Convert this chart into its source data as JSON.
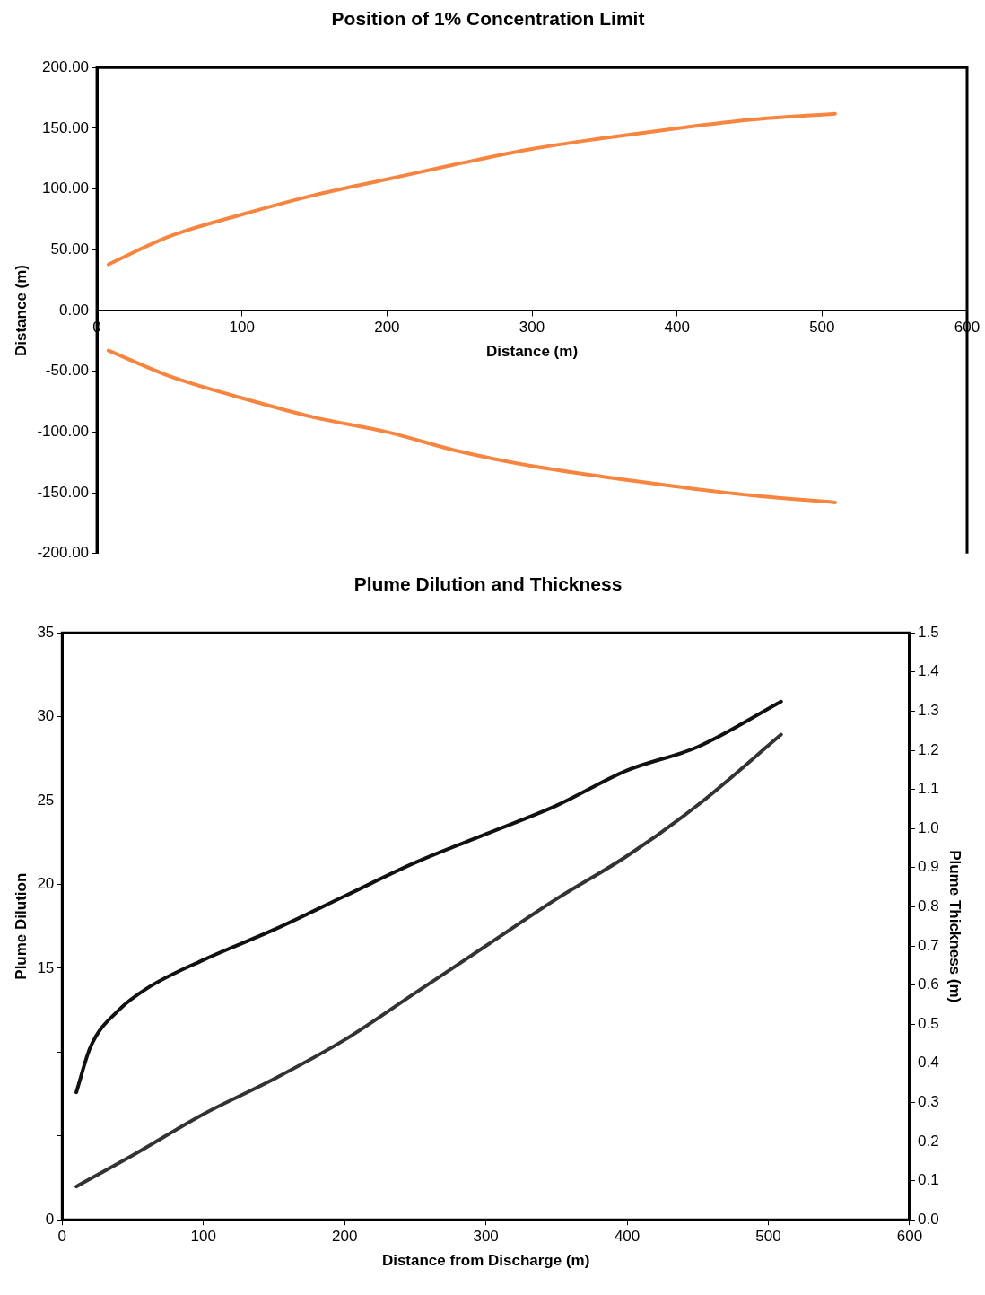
{
  "chart_data": [
    {
      "type": "line",
      "title": "Position of 1% Concentration Limit",
      "xlabel": "Distance (m)",
      "ylabel": "Distance (m)",
      "grid": false,
      "legend": false,
      "marker": "none",
      "line_style": "solid",
      "xlim": [
        0,
        600
      ],
      "xticks": [
        0,
        100,
        200,
        300,
        400,
        500,
        600
      ],
      "ylim": [
        -200,
        200
      ],
      "yticks": [
        {
          "value": -200,
          "label": "-200.00"
        },
        {
          "value": -150,
          "label": "-150.00"
        },
        {
          "value": -100,
          "label": "-100.00"
        },
        {
          "value": -50,
          "label": "-50.00"
        },
        {
          "value": 0,
          "label": "0.00"
        },
        {
          "value": 50,
          "label": "50.00"
        },
        {
          "value": 100,
          "label": "100.00"
        },
        {
          "value": 150,
          "label": "150.00"
        },
        {
          "value": 200,
          "label": "200.00"
        }
      ],
      "series": [
        {
          "color": "#f7853f",
          "x": [
            8,
            50,
            100,
            150,
            200,
            250,
            300,
            350,
            400,
            450,
            509
          ],
          "values": [
            38,
            61,
            79,
            95,
            108,
            121,
            133,
            142,
            150,
            157,
            162
          ]
        },
        {
          "color": "#f7853f",
          "x": [
            8,
            50,
            100,
            150,
            200,
            250,
            300,
            350,
            400,
            450,
            509
          ],
          "values": [
            -33,
            -54,
            -72,
            -88,
            -100,
            -116,
            -128,
            -137,
            -145,
            -152,
            -158
          ]
        }
      ]
    },
    {
      "type": "line",
      "title": "Plume Dilution and Thickness",
      "xlabel": "Distance from Discharge (m)",
      "ylabel": "Plume Dilution",
      "y2label": "Plume Thickness (m)",
      "grid": false,
      "legend": false,
      "marker": "none",
      "line_style": "solid",
      "xlim": [
        0,
        600
      ],
      "xticks": [
        0,
        100,
        200,
        300,
        400,
        500,
        600
      ],
      "ylim": [
        0,
        35
      ],
      "yticks": [
        0,
        {
          "value": 5,
          "label": null
        },
        {
          "value": 10,
          "label": null
        },
        15,
        20,
        25,
        30,
        35
      ],
      "y2lim": [
        0,
        1.5
      ],
      "y2ticks": [
        {
          "value": 0,
          "label": "0.0"
        },
        {
          "value": 0.1,
          "label": "0.1"
        },
        {
          "value": 0.2,
          "label": "0.2"
        },
        {
          "value": 0.3,
          "label": "0.3"
        },
        {
          "value": 0.4,
          "label": "0.4"
        },
        {
          "value": 0.5,
          "label": "0.5"
        },
        {
          "value": 0.6,
          "label": "0.6"
        },
        {
          "value": 0.7,
          "label": "0.7"
        },
        {
          "value": 0.8,
          "label": "0.8"
        },
        {
          "value": 0.9,
          "label": "0.9"
        },
        {
          "value": 1,
          "label": "1.0"
        },
        {
          "value": 1.1,
          "label": "1.1"
        },
        {
          "value": 1.2,
          "label": "1.2"
        },
        {
          "value": 1.3,
          "label": "1.3"
        },
        {
          "value": 1.4,
          "label": "1.4"
        },
        {
          "value": 1.5,
          "label": "1.5"
        }
      ],
      "series": [
        {
          "color": "#111111",
          "x": [
            10,
            20,
            40,
            60,
            100,
            150,
            200,
            250,
            300,
            350,
            400,
            450,
            509
          ],
          "values": [
            7.6,
            10.3,
            12.5,
            13.8,
            15.5,
            17.3,
            19.3,
            21.3,
            23.0,
            24.7,
            26.8,
            28.2,
            30.9
          ]
        },
        {
          "color": "#333333",
          "axis": "y2",
          "x": [
            10,
            50,
            100,
            150,
            200,
            250,
            300,
            350,
            400,
            450,
            509
          ],
          "values": [
            0.085,
            0.165,
            0.27,
            0.36,
            0.46,
            0.58,
            0.7,
            0.82,
            0.93,
            1.06,
            1.24
          ]
        }
      ]
    }
  ]
}
